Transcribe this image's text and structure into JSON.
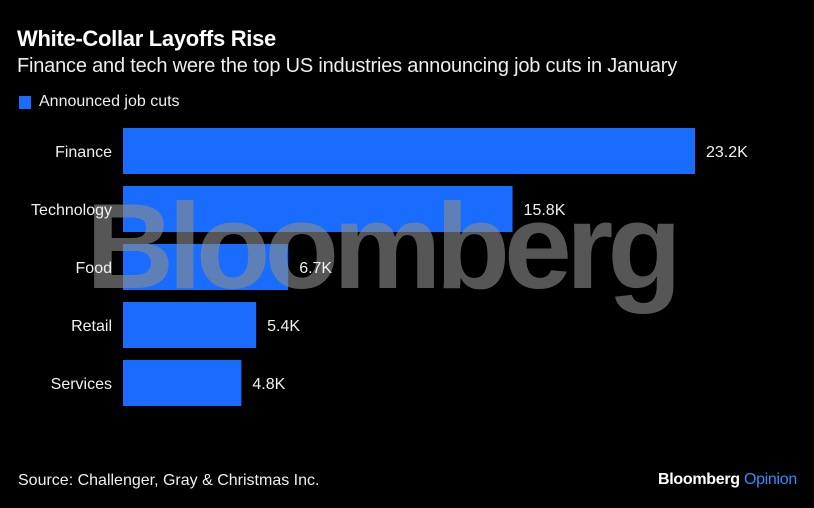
{
  "header": {
    "title": "White-Collar Layoffs Rise",
    "subtitle": "Finance and tech were the top US industries announcing job cuts in January"
  },
  "legend": {
    "label": "Announced job cuts",
    "color": "#1a6cff"
  },
  "watermark": "Bloomberg",
  "footer": {
    "source": "Source: Challenger, Gray & Christmas Inc.",
    "brand_primary": "Bloomberg",
    "brand_secondary": "Opinion"
  },
  "chart_data": {
    "type": "bar",
    "orientation": "horizontal",
    "title": "White-Collar Layoffs Rise",
    "subtitle": "Finance and tech were the top US industries announcing job cuts in January",
    "categories": [
      "Finance",
      "Technology",
      "Food",
      "Retail",
      "Services"
    ],
    "series": [
      {
        "name": "Announced job cuts",
        "color": "#1a6cff",
        "values": [
          23200,
          15800,
          6700,
          5400,
          4800
        ]
      }
    ],
    "data_labels": [
      "23.2K",
      "15.8K",
      "6.7K",
      "5.4K",
      "4.8K"
    ],
    "xlabel": "",
    "ylabel": "",
    "xlim": [
      0,
      23200
    ],
    "grid": false,
    "legend_position": "top-left"
  }
}
